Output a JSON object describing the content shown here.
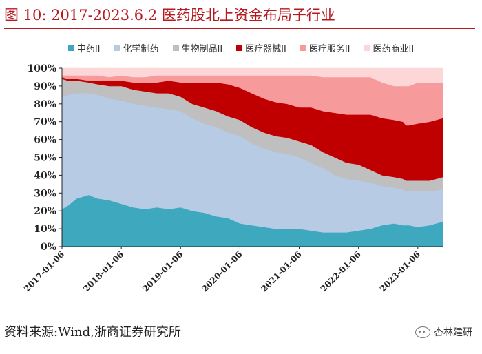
{
  "title": "图 10:   2017-2023.6.2 医药股北上资金布局子行业",
  "source": "资料来源:Wind,浙商证券研究所",
  "watermark": "杏林建研",
  "colors": {
    "title": "#b8191e",
    "series": [
      "#3ea8bf",
      "#b7cbe5",
      "#bfbfbf",
      "#c00000",
      "#f79a9c",
      "#fdd7d8"
    ]
  },
  "chart_data": {
    "type": "area",
    "stacked": true,
    "title": "2017-2023.6.2 医药股北上资金布局子行业",
    "xlabel": "",
    "ylabel": "",
    "ylim": [
      0,
      100
    ],
    "ytick_labels": [
      "0%",
      "10%",
      "20%",
      "30%",
      "40%",
      "50%",
      "60%",
      "70%",
      "80%",
      "90%",
      "100%"
    ],
    "x_tick_labels": [
      "2017-01-06",
      "2018-01-06",
      "2019-01-06",
      "2020-01-06",
      "2021-01-06",
      "2022-01-06",
      "2023-01-06"
    ],
    "x_range": [
      2017.0,
      2023.42
    ],
    "x_ticks": [
      2017.0,
      2018.0,
      2019.0,
      2020.0,
      2021.0,
      2022.0,
      2023.0
    ],
    "legend_position": "top",
    "x": [
      2017.0,
      2017.1,
      2017.25,
      2017.45,
      2017.6,
      2017.8,
      2018.0,
      2018.2,
      2018.4,
      2018.6,
      2018.8,
      2019.0,
      2019.2,
      2019.4,
      2019.6,
      2019.8,
      2020.0,
      2020.2,
      2020.4,
      2020.6,
      2020.8,
      2021.0,
      2021.2,
      2021.4,
      2021.6,
      2021.8,
      2022.0,
      2022.2,
      2022.4,
      2022.6,
      2022.75,
      2022.8,
      2022.85,
      2023.0,
      2023.2,
      2023.42
    ],
    "series": [
      {
        "name": "中药II",
        "values": [
          21,
          23,
          27,
          29,
          27,
          26,
          24,
          22,
          21,
          22,
          21,
          22,
          20,
          19,
          17,
          16,
          13,
          12,
          11,
          10,
          10,
          10,
          9,
          8,
          8,
          8,
          9,
          10,
          12,
          13,
          12,
          12,
          12,
          11,
          12,
          14
        ]
      },
      {
        "name": "化学制药",
        "values": [
          63,
          62,
          59,
          57,
          58,
          57,
          58,
          58,
          58,
          56,
          56,
          54,
          52,
          50,
          50,
          48,
          49,
          46,
          44,
          43,
          42,
          40,
          38,
          36,
          32,
          30,
          28,
          26,
          22,
          20,
          20,
          19,
          19,
          20,
          19,
          18
        ]
      },
      {
        "name": "生物制品II",
        "values": [
          10,
          8,
          7,
          6,
          6,
          7,
          8,
          8,
          8,
          8,
          9,
          8,
          8,
          9,
          9,
          9,
          9,
          9,
          9,
          9,
          9,
          9,
          10,
          9,
          10,
          9,
          9,
          7,
          6,
          6,
          6,
          6,
          6,
          6,
          6,
          7
        ]
      },
      {
        "name": "医疗器械II",
        "values": [
          1,
          1,
          1,
          1,
          2,
          3,
          3,
          4,
          5,
          6,
          7,
          8,
          12,
          14,
          16,
          18,
          18,
          19,
          19,
          19,
          19,
          19,
          21,
          23,
          25,
          27,
          28,
          31,
          32,
          32,
          32,
          31,
          31,
          32,
          33,
          33
        ]
      },
      {
        "name": "医疗服务II",
        "values": [
          1,
          2,
          2,
          3,
          3,
          2,
          3,
          3,
          3,
          4,
          3,
          4,
          4,
          4,
          4,
          5,
          7,
          10,
          13,
          15,
          16,
          18,
          18,
          19,
          20,
          21,
          21,
          21,
          20,
          19,
          20,
          22,
          22,
          23,
          22,
          20
        ]
      },
      {
        "name": "医药商业II",
        "values": [
          4,
          4,
          4,
          4,
          4,
          5,
          4,
          5,
          5,
          4,
          4,
          4,
          4,
          4,
          4,
          4,
          4,
          4,
          4,
          4,
          4,
          4,
          4,
          5,
          5,
          5,
          5,
          5,
          8,
          10,
          10,
          10,
          10,
          8,
          8,
          8
        ]
      }
    ]
  }
}
